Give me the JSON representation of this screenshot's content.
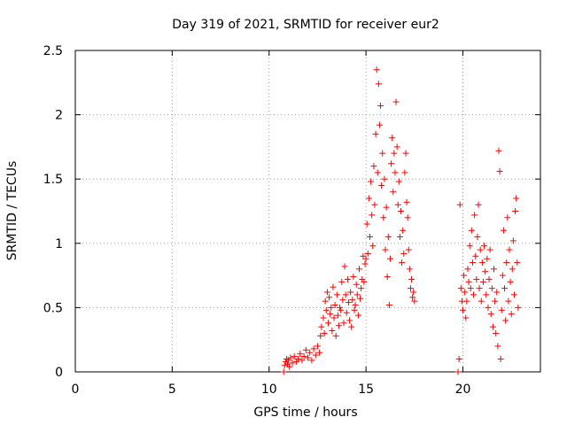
{
  "chart_data": {
    "type": "scatter",
    "title": "Day 319 of 2021, SRMTID for receiver eur2",
    "xlabel": "GPS time / hours",
    "ylabel": "SRMTID / TECUs",
    "xlim": [
      0,
      24
    ],
    "ylim": [
      0,
      2.5
    ],
    "x_ticks": [
      0,
      5,
      10,
      15,
      20
    ],
    "x_tick_labels": [
      "0",
      "5",
      "10",
      "15",
      "20"
    ],
    "y_ticks": [
      0,
      0.5,
      1,
      1.5,
      2,
      2.5
    ],
    "y_tick_labels": [
      "0",
      "0.5",
      "1",
      "1.5",
      "2",
      "2.5"
    ],
    "grid": true,
    "marker": "+",
    "marker_color": "#ff0000",
    "series": [
      {
        "name": "SRMTID",
        "points": [
          [
            10.75,
            0.0
          ],
          [
            10.8,
            0.05
          ],
          [
            10.85,
            0.08
          ],
          [
            10.9,
            0.1
          ],
          [
            10.95,
            0.06
          ],
          [
            11.0,
            0.09
          ],
          [
            11.05,
            0.04
          ],
          [
            11.1,
            0.11
          ],
          [
            11.2,
            0.07
          ],
          [
            11.3,
            0.12
          ],
          [
            11.4,
            0.08
          ],
          [
            11.5,
            0.1
          ],
          [
            11.6,
            0.14
          ],
          [
            11.7,
            0.09
          ],
          [
            11.8,
            0.12
          ],
          [
            11.9,
            0.17
          ],
          [
            12.0,
            0.11
          ],
          [
            12.1,
            0.15
          ],
          [
            12.2,
            0.09
          ],
          [
            12.3,
            0.18
          ],
          [
            12.4,
            0.13
          ],
          [
            12.5,
            0.2
          ],
          [
            12.6,
            0.15
          ],
          [
            12.65,
            0.28
          ],
          [
            12.7,
            0.35
          ],
          [
            12.8,
            0.42
          ],
          [
            12.85,
            0.3
          ],
          [
            12.9,
            0.55
          ],
          [
            12.95,
            0.48
          ],
          [
            13.0,
            0.62
          ],
          [
            13.05,
            0.38
          ],
          [
            13.1,
            0.58
          ],
          [
            13.15,
            0.45
          ],
          [
            13.2,
            0.5
          ],
          [
            13.25,
            0.32
          ],
          [
            13.3,
            0.66
          ],
          [
            13.35,
            0.42
          ],
          [
            13.4,
            0.52
          ],
          [
            13.45,
            0.28
          ],
          [
            13.5,
            0.6
          ],
          [
            13.55,
            0.44
          ],
          [
            13.6,
            0.36
          ],
          [
            13.65,
            0.5
          ],
          [
            13.7,
            0.48
          ],
          [
            13.75,
            0.7
          ],
          [
            13.8,
            0.56
          ],
          [
            13.85,
            0.38
          ],
          [
            13.9,
            0.82
          ],
          [
            13.95,
            0.6
          ],
          [
            14.0,
            0.46
          ],
          [
            14.05,
            0.72
          ],
          [
            14.1,
            0.54
          ],
          [
            14.15,
            0.4
          ],
          [
            14.2,
            0.62
          ],
          [
            14.25,
            0.35
          ],
          [
            14.3,
            0.56
          ],
          [
            14.35,
            0.74
          ],
          [
            14.4,
            0.48
          ],
          [
            14.45,
            0.52
          ],
          [
            14.5,
            0.68
          ],
          [
            14.55,
            0.6
          ],
          [
            14.6,
            0.44
          ],
          [
            14.65,
            0.8
          ],
          [
            14.7,
            0.57
          ],
          [
            14.75,
            0.65
          ],
          [
            14.8,
            0.72
          ],
          [
            14.85,
            0.9
          ],
          [
            14.9,
            0.7
          ],
          [
            14.95,
            0.84
          ],
          [
            15.0,
            0.88
          ],
          [
            15.05,
            1.15
          ],
          [
            15.1,
            0.92
          ],
          [
            15.15,
            1.35
          ],
          [
            15.2,
            1.05
          ],
          [
            15.25,
            1.48
          ],
          [
            15.3,
            1.22
          ],
          [
            15.35,
            0.98
          ],
          [
            15.4,
            1.6
          ],
          [
            15.45,
            1.3
          ],
          [
            15.5,
            1.85
          ],
          [
            15.55,
            2.35
          ],
          [
            15.6,
            1.55
          ],
          [
            15.65,
            2.24
          ],
          [
            15.7,
            1.92
          ],
          [
            15.75,
            2.07
          ],
          [
            15.8,
            1.45
          ],
          [
            15.85,
            1.7
          ],
          [
            15.9,
            1.2
          ],
          [
            15.95,
            1.5
          ],
          [
            16.0,
            0.95
          ],
          [
            16.05,
            1.28
          ],
          [
            16.1,
            0.74
          ],
          [
            16.15,
            1.05
          ],
          [
            16.2,
            0.52
          ],
          [
            16.25,
            0.88
          ],
          [
            16.3,
            1.62
          ],
          [
            16.35,
            1.82
          ],
          [
            16.4,
            1.4
          ],
          [
            16.45,
            1.7
          ],
          [
            16.5,
            1.55
          ],
          [
            16.55,
            2.1
          ],
          [
            16.6,
            1.75
          ],
          [
            16.65,
            1.3
          ],
          [
            16.7,
            1.48
          ],
          [
            16.75,
            1.05
          ],
          [
            16.8,
            1.25
          ],
          [
            16.85,
            0.85
          ],
          [
            16.9,
            1.1
          ],
          [
            16.95,
            0.92
          ],
          [
            17.0,
            1.55
          ],
          [
            17.05,
            1.7
          ],
          [
            17.1,
            1.32
          ],
          [
            17.15,
            1.2
          ],
          [
            17.2,
            0.95
          ],
          [
            17.25,
            0.8
          ],
          [
            17.3,
            0.65
          ],
          [
            17.35,
            0.72
          ],
          [
            17.4,
            0.58
          ],
          [
            17.45,
            0.62
          ],
          [
            17.5,
            0.55
          ],
          [
            19.75,
            0.0
          ],
          [
            19.8,
            0.1
          ],
          [
            19.85,
            1.3
          ],
          [
            19.9,
            0.65
          ],
          [
            19.95,
            0.55
          ],
          [
            20.0,
            0.48
          ],
          [
            20.05,
            0.75
          ],
          [
            20.1,
            0.62
          ],
          [
            20.15,
            0.42
          ],
          [
            20.2,
            0.55
          ],
          [
            20.25,
            0.8
          ],
          [
            20.3,
            0.7
          ],
          [
            20.35,
            0.98
          ],
          [
            20.4,
            0.65
          ],
          [
            20.45,
            1.1
          ],
          [
            20.5,
            0.85
          ],
          [
            20.55,
            0.6
          ],
          [
            20.6,
            1.22
          ],
          [
            20.65,
            0.9
          ],
          [
            20.7,
            0.72
          ],
          [
            20.75,
            1.05
          ],
          [
            20.8,
            1.3
          ],
          [
            20.85,
            0.65
          ],
          [
            20.9,
            0.95
          ],
          [
            20.95,
            0.55
          ],
          [
            21.0,
            0.85
          ],
          [
            21.05,
            0.7
          ],
          [
            21.1,
            0.98
          ],
          [
            21.15,
            0.78
          ],
          [
            21.2,
            0.6
          ],
          [
            21.25,
            0.88
          ],
          [
            21.3,
            0.5
          ],
          [
            21.35,
            0.72
          ],
          [
            21.4,
            0.95
          ],
          [
            21.45,
            0.45
          ],
          [
            21.5,
            0.65
          ],
          [
            21.55,
            0.35
          ],
          [
            21.6,
            0.8
          ],
          [
            21.65,
            0.55
          ],
          [
            21.7,
            0.3
          ],
          [
            21.75,
            0.62
          ],
          [
            21.8,
            0.2
          ],
          [
            21.85,
            1.72
          ],
          [
            21.9,
            1.56
          ],
          [
            21.95,
            0.1
          ],
          [
            22.0,
            0.48
          ],
          [
            22.05,
            0.75
          ],
          [
            22.1,
            1.1
          ],
          [
            22.15,
            0.65
          ],
          [
            22.2,
            0.4
          ],
          [
            22.25,
            0.85
          ],
          [
            22.3,
            1.2
          ],
          [
            22.35,
            0.55
          ],
          [
            22.4,
            0.95
          ],
          [
            22.45,
            0.7
          ],
          [
            22.5,
            0.45
          ],
          [
            22.55,
            0.8
          ],
          [
            22.6,
            1.02
          ],
          [
            22.65,
            0.6
          ],
          [
            22.7,
            1.25
          ],
          [
            22.75,
            1.35
          ],
          [
            22.8,
            0.85
          ],
          [
            22.85,
            0.5
          ]
        ]
      }
    ]
  }
}
